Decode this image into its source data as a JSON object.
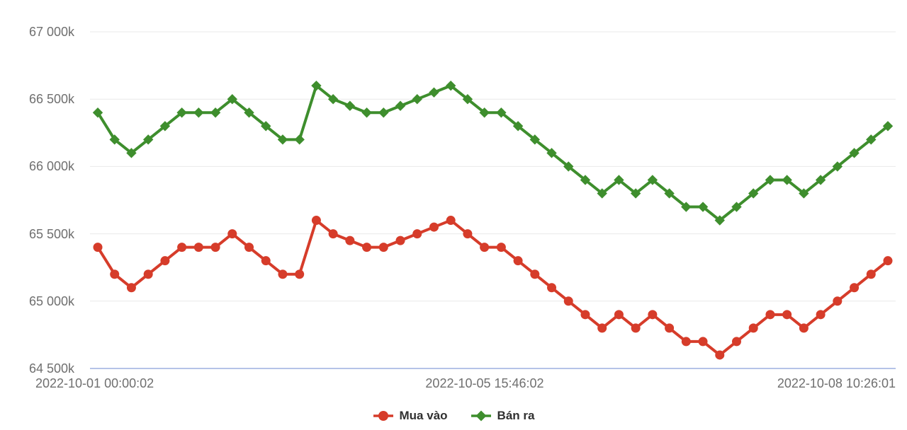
{
  "chart_data": {
    "type": "line",
    "title": "",
    "xlabel": "",
    "ylabel": "",
    "ylim": [
      64500,
      67000
    ],
    "grid": "horizontal",
    "legend_position": "bottom",
    "x_tick_labels": [
      "2022-10-01 00:00:02",
      "2022-10-05 15:46:02",
      "2022-10-08 10:26:01"
    ],
    "y_ticks": [
      {
        "label": "67 000k",
        "value": 67000
      },
      {
        "label": "66 500k",
        "value": 66500
      },
      {
        "label": "66 000k",
        "value": 66000
      },
      {
        "label": "65 500k",
        "value": 65500
      },
      {
        "label": "65 000k",
        "value": 65000
      },
      {
        "label": "64 500k",
        "value": 64500
      }
    ],
    "series": [
      {
        "name": "Mua vào",
        "color": "#d63c2a",
        "marker": "circle",
        "values": [
          65400,
          65200,
          65100,
          65200,
          65300,
          65400,
          65400,
          65400,
          65500,
          65400,
          65300,
          65200,
          65200,
          65600,
          65500,
          65450,
          65400,
          65400,
          65450,
          65500,
          65550,
          65600,
          65500,
          65400,
          65400,
          65300,
          65200,
          65100,
          65000,
          64900,
          64800,
          64900,
          64800,
          64900,
          64800,
          64700,
          64700,
          64600,
          64700,
          64800,
          64900,
          64900,
          64800,
          64900,
          65000,
          65100,
          65200,
          65300
        ]
      },
      {
        "name": "Bán ra",
        "color": "#3e8e2d",
        "marker": "diamond",
        "values": [
          66400,
          66200,
          66100,
          66200,
          66300,
          66400,
          66400,
          66400,
          66500,
          66400,
          66300,
          66200,
          66200,
          66600,
          66500,
          66450,
          66400,
          66400,
          66450,
          66500,
          66550,
          66600,
          66500,
          66400,
          66400,
          66300,
          66200,
          66100,
          66000,
          65900,
          65800,
          65900,
          65800,
          65900,
          65800,
          65700,
          65700,
          65600,
          65700,
          65800,
          65900,
          65900,
          65800,
          65900,
          66000,
          66100,
          66200,
          66300
        ]
      }
    ]
  },
  "colors": {
    "background": "#ffffff",
    "grid": "#e9e9e9",
    "axis_line": "#b5c3e8",
    "tick_text": "#6f6f6f",
    "legend_text": "#303030"
  }
}
